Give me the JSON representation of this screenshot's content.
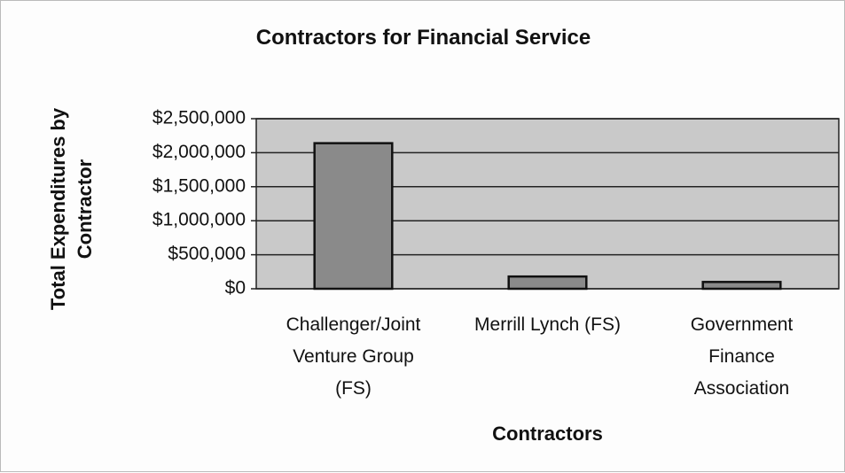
{
  "chart_data": {
    "type": "bar",
    "title": "Contractors for Financial Service",
    "x_label": "Contractors",
    "y_label": "Total Expenditures by Contractor",
    "categories": [
      "Challenger/Joint Venture Group (FS)",
      "Merrill Lynch (FS)",
      "Government Finance Association"
    ],
    "values": [
      2140000,
      180000,
      100000
    ],
    "color": "#8a8a8a",
    "background": "#c9c9c9",
    "ylim": [
      0,
      2500000
    ],
    "yticks": [
      {
        "value": 0,
        "label": "$0"
      },
      {
        "value": 500000,
        "label": "$500,000"
      },
      {
        "value": 1000000,
        "label": "$1,000,000"
      },
      {
        "value": 1500000,
        "label": "$1,500,000"
      },
      {
        "value": 2000000,
        "label": "$2,000,000"
      },
      {
        "value": 2500000,
        "label": "$2,500,000"
      }
    ],
    "grid": true
  }
}
